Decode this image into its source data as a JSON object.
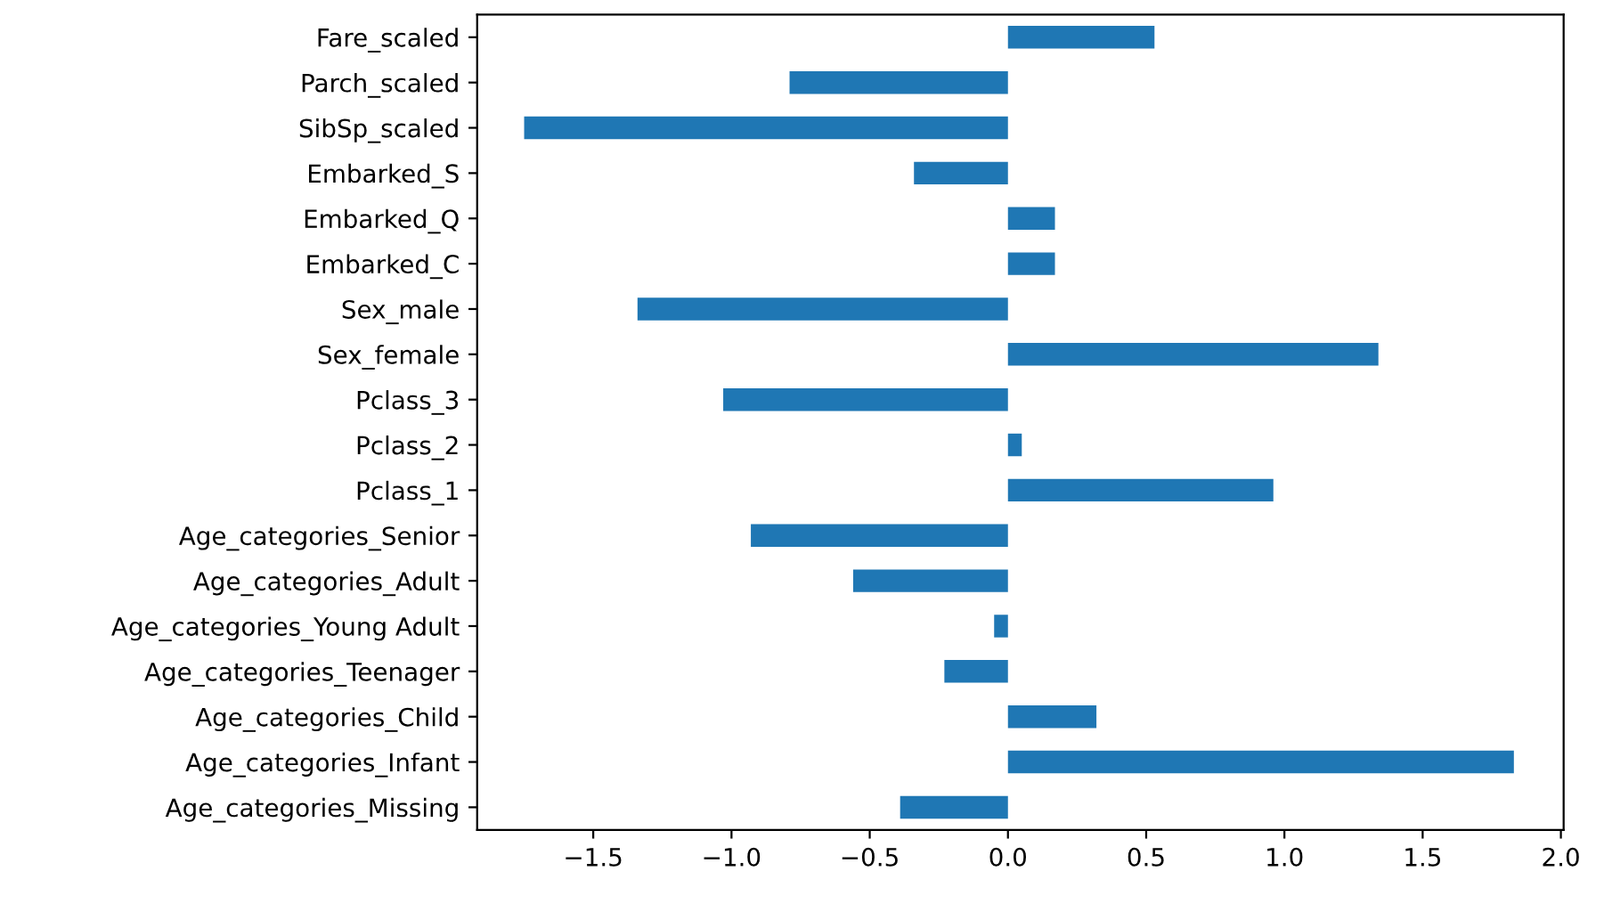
{
  "chart_data": {
    "type": "bar",
    "orientation": "horizontal",
    "categories": [
      "Fare_scaled",
      "Parch_scaled",
      "SibSp_scaled",
      "Embarked_S",
      "Embarked_Q",
      "Embarked_C",
      "Sex_male",
      "Sex_female",
      "Pclass_3",
      "Pclass_2",
      "Pclass_1",
      "Age_categories_Senior",
      "Age_categories_Adult",
      "Age_categories_Young Adult",
      "Age_categories_Teenager",
      "Age_categories_Child",
      "Age_categories_Infant",
      "Age_categories_Missing"
    ],
    "values": [
      0.53,
      -0.79,
      -1.75,
      -0.34,
      0.17,
      0.17,
      -1.34,
      1.34,
      -1.03,
      0.05,
      0.96,
      -0.93,
      -0.56,
      -0.05,
      -0.23,
      0.32,
      1.83,
      -0.39
    ],
    "color": "#1f77b4",
    "xlim": [
      -1.92,
      2.01
    ],
    "xticks": [
      {
        "value": -1.5,
        "label": "−1.5"
      },
      {
        "value": -1.0,
        "label": "−1.0"
      },
      {
        "value": -0.5,
        "label": "−0.5"
      },
      {
        "value": 0.0,
        "label": "0.0"
      },
      {
        "value": 0.5,
        "label": "0.5"
      },
      {
        "value": 1.0,
        "label": "1.0"
      },
      {
        "value": 1.5,
        "label": "1.5"
      },
      {
        "value": 2.0,
        "label": "2.0"
      }
    ],
    "grid": false,
    "legend": false
  }
}
